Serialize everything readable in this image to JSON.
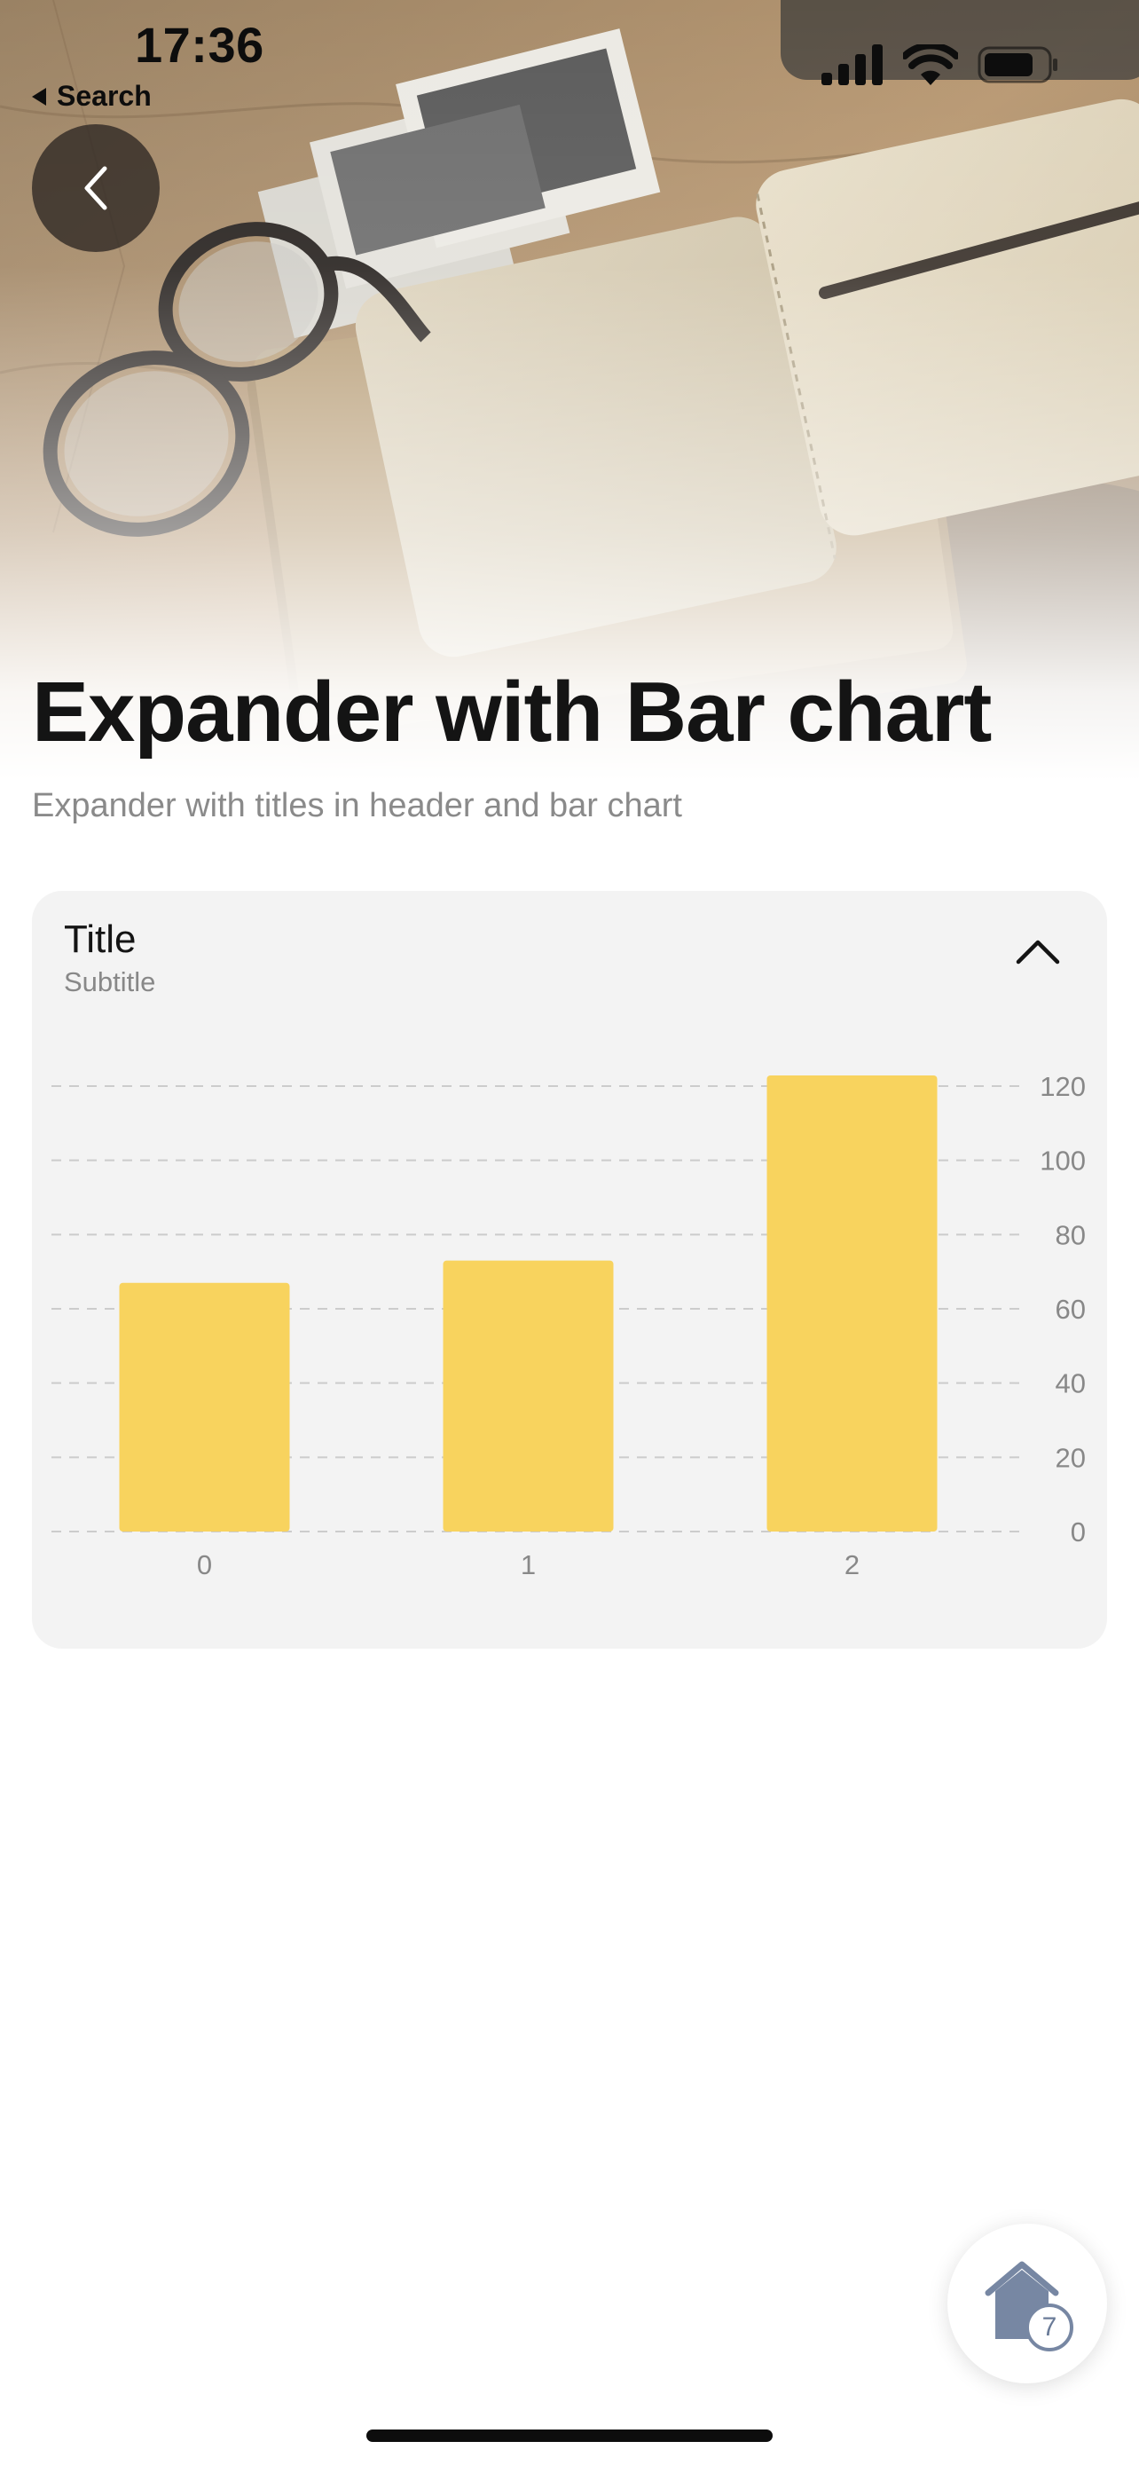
{
  "status_bar": {
    "time": "17:36",
    "back_app_label": "Search"
  },
  "page": {
    "title": "Expander with Bar chart",
    "subtitle": "Expander with titles in header and bar chart"
  },
  "expander": {
    "title": "Title",
    "subtitle": "Subtitle",
    "expanded": true
  },
  "chart_data": {
    "type": "bar",
    "categories": [
      "0",
      "1",
      "2"
    ],
    "values": [
      67,
      73,
      123
    ],
    "ylim": [
      0,
      120
    ],
    "yticks": [
      0,
      20,
      40,
      60,
      80,
      100,
      120
    ],
    "y_axis_position": "right",
    "grid": true,
    "bar_color": "#f8d35e",
    "grid_color": "#cccccc"
  },
  "home_button": {
    "icon": "home-icon",
    "badge_count": "7"
  },
  "colors": {
    "accent_bar": "#f8d35e",
    "card_background": "#f3f3f3",
    "badge": "#7787a3"
  }
}
